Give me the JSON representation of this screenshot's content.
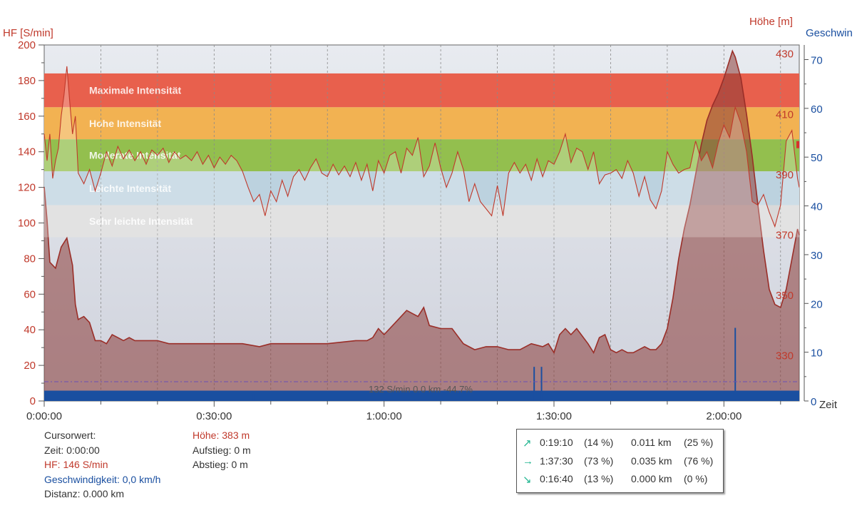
{
  "header": {
    "hf_axis_label": "HF [S/min]",
    "hoehe_axis_label": "Höhe [m]",
    "speed_axis_label": "Geschwin",
    "time_axis_label": "Zeit"
  },
  "zones": [
    {
      "label": "Maximale Intensität",
      "from": 165,
      "to": 184,
      "color": "#e8604d"
    },
    {
      "label": "Hohe Intensität",
      "from": 147,
      "to": 165,
      "color": "#f2b252"
    },
    {
      "label": "Moderate Intensität",
      "from": 129,
      "to": 147,
      "color": "#93bf4e"
    },
    {
      "label": "Leichte Intensität",
      "from": 110,
      "to": 129,
      "color": "#bcd2df"
    },
    {
      "label": "Sehr leichte Intensität",
      "from": 92,
      "to": 110,
      "color": "#d9d9d9"
    }
  ],
  "reference_line": {
    "value": 12,
    "text": "132 S/min 0.0 km -44.7%"
  },
  "chart_data": {
    "type": "area",
    "title": "",
    "xlabel": "Zeit",
    "ylabel": "HF [S/min]",
    "x_range_minutes": [
      0,
      133.3
    ],
    "x_ticks": [
      "0:00:00",
      "0:30:00",
      "1:00:00",
      "1:30:00",
      "2:00:00"
    ],
    "x_tick_minutes": [
      0,
      30,
      60,
      90,
      120
    ],
    "y_left": {
      "label": "HF [S/min]",
      "range": [
        0,
        200
      ],
      "ticks": [
        0,
        20,
        40,
        60,
        80,
        100,
        120,
        140,
        160,
        180,
        200
      ]
    },
    "y_right_hoehe": {
      "label": "Höhe [m]",
      "range": [
        315,
        433
      ],
      "ticks": [
        330,
        350,
        370,
        390,
        410,
        430
      ]
    },
    "y_right_speed": {
      "label": "Geschwin",
      "range": [
        0,
        73
      ],
      "ticks": [
        0,
        10,
        20,
        30,
        40,
        50,
        60,
        70
      ]
    },
    "grid": true,
    "series": [
      {
        "name": "HF",
        "unit": "S/min",
        "color": "#c0392b",
        "points": [
          [
            0,
            150
          ],
          [
            0.5,
            135
          ],
          [
            1,
            150
          ],
          [
            1.5,
            125
          ],
          [
            2,
            135
          ],
          [
            2.5,
            142
          ],
          [
            3,
            160
          ],
          [
            3.5,
            172
          ],
          [
            4,
            188
          ],
          [
            4.5,
            168
          ],
          [
            5,
            150
          ],
          [
            5.5,
            160
          ],
          [
            6,
            128
          ],
          [
            7,
            122
          ],
          [
            8,
            130
          ],
          [
            9,
            118
          ],
          [
            10,
            128
          ],
          [
            11,
            140
          ],
          [
            12,
            132
          ],
          [
            13,
            143
          ],
          [
            14,
            136
          ],
          [
            15,
            141
          ],
          [
            16,
            135
          ],
          [
            17,
            140
          ],
          [
            18,
            133
          ],
          [
            19,
            141
          ],
          [
            20,
            138
          ],
          [
            21,
            142
          ],
          [
            22,
            134
          ],
          [
            23,
            140
          ],
          [
            24,
            136
          ],
          [
            25,
            138
          ],
          [
            26,
            135
          ],
          [
            27,
            140
          ],
          [
            28,
            133
          ],
          [
            29,
            138
          ],
          [
            30,
            131
          ],
          [
            31,
            137
          ],
          [
            32,
            133
          ],
          [
            33,
            138
          ],
          [
            34,
            135
          ],
          [
            35,
            129
          ],
          [
            36,
            120
          ],
          [
            37,
            112
          ],
          [
            38,
            116
          ],
          [
            39,
            104
          ],
          [
            40,
            118
          ],
          [
            41,
            112
          ],
          [
            42,
            124
          ],
          [
            43,
            115
          ],
          [
            44,
            126
          ],
          [
            45,
            130
          ],
          [
            46,
            124
          ],
          [
            47,
            131
          ],
          [
            48,
            136
          ],
          [
            49,
            128
          ],
          [
            50,
            126
          ],
          [
            51,
            133
          ],
          [
            52,
            127
          ],
          [
            53,
            132
          ],
          [
            54,
            126
          ],
          [
            55,
            134
          ],
          [
            56,
            124
          ],
          [
            57,
            133
          ],
          [
            58,
            118
          ],
          [
            59,
            135
          ],
          [
            60,
            128
          ],
          [
            61,
            138
          ],
          [
            62,
            140
          ],
          [
            63,
            128
          ],
          [
            64,
            142
          ],
          [
            65,
            138
          ],
          [
            66,
            148
          ],
          [
            67,
            126
          ],
          [
            68,
            132
          ],
          [
            69,
            145
          ],
          [
            70,
            131
          ],
          [
            71,
            120
          ],
          [
            72,
            128
          ],
          [
            73,
            140
          ],
          [
            74,
            130
          ],
          [
            75,
            112
          ],
          [
            76,
            122
          ],
          [
            77,
            112
          ],
          [
            78,
            108
          ],
          [
            79,
            104
          ],
          [
            80,
            121
          ],
          [
            81,
            104
          ],
          [
            82,
            128
          ],
          [
            83,
            134
          ],
          [
            84,
            128
          ],
          [
            85,
            133
          ],
          [
            86,
            124
          ],
          [
            87,
            136
          ],
          [
            88,
            126
          ],
          [
            89,
            135
          ],
          [
            90,
            133
          ],
          [
            91,
            140
          ],
          [
            92,
            150
          ],
          [
            93,
            134
          ],
          [
            94,
            142
          ],
          [
            95,
            140
          ],
          [
            96,
            130
          ],
          [
            97,
            140
          ],
          [
            98,
            122
          ],
          [
            99,
            127
          ],
          [
            100,
            128
          ],
          [
            101,
            130
          ],
          [
            102,
            125
          ],
          [
            103,
            135
          ],
          [
            104,
            128
          ],
          [
            105,
            115
          ],
          [
            106,
            126
          ],
          [
            107,
            113
          ],
          [
            108,
            108
          ],
          [
            109,
            118
          ],
          [
            110,
            140
          ],
          [
            111,
            133
          ],
          [
            112,
            128
          ],
          [
            113,
            130
          ],
          [
            114,
            131
          ],
          [
            115,
            146
          ],
          [
            116,
            135
          ],
          [
            117,
            140
          ],
          [
            118,
            131
          ],
          [
            119,
            145
          ],
          [
            120,
            155
          ],
          [
            121,
            148
          ],
          [
            122,
            165
          ],
          [
            123,
            156
          ],
          [
            124,
            140
          ],
          [
            125,
            112
          ],
          [
            126,
            110
          ],
          [
            127,
            116
          ],
          [
            128,
            106
          ],
          [
            129,
            98
          ],
          [
            130,
            110
          ],
          [
            131,
            146
          ],
          [
            132,
            152
          ],
          [
            133,
            125
          ],
          [
            133.3,
            120
          ]
        ]
      },
      {
        "name": "Höhe",
        "unit": "m",
        "color": "#9a5a55",
        "points": [
          [
            0,
            386
          ],
          [
            0.5,
            375
          ],
          [
            1,
            361
          ],
          [
            2,
            359
          ],
          [
            3,
            366
          ],
          [
            4,
            369
          ],
          [
            5,
            360
          ],
          [
            5.5,
            347
          ],
          [
            6,
            342
          ],
          [
            7,
            343
          ],
          [
            8,
            341
          ],
          [
            9,
            335
          ],
          [
            10,
            335
          ],
          [
            11,
            334
          ],
          [
            12,
            337
          ],
          [
            13,
            336
          ],
          [
            14,
            335
          ],
          [
            15,
            336
          ],
          [
            16,
            335
          ],
          [
            18,
            335
          ],
          [
            20,
            335
          ],
          [
            22,
            334
          ],
          [
            25,
            334
          ],
          [
            27,
            334
          ],
          [
            30,
            334
          ],
          [
            35,
            334
          ],
          [
            38,
            333
          ],
          [
            40,
            334
          ],
          [
            45,
            334
          ],
          [
            50,
            334
          ],
          [
            55,
            335
          ],
          [
            57,
            335
          ],
          [
            58,
            336
          ],
          [
            59,
            339
          ],
          [
            60,
            337
          ],
          [
            62,
            341
          ],
          [
            64,
            345
          ],
          [
            65,
            344
          ],
          [
            66,
            343
          ],
          [
            67,
            346
          ],
          [
            68,
            340
          ],
          [
            70,
            339
          ],
          [
            72,
            339
          ],
          [
            74,
            334
          ],
          [
            76,
            332
          ],
          [
            78,
            333
          ],
          [
            80,
            333
          ],
          [
            82,
            332
          ],
          [
            84,
            332
          ],
          [
            86,
            334
          ],
          [
            88,
            333
          ],
          [
            89,
            334
          ],
          [
            90,
            331
          ],
          [
            91,
            337
          ],
          [
            92,
            339
          ],
          [
            93,
            337
          ],
          [
            94,
            339
          ],
          [
            96,
            334
          ],
          [
            97,
            331
          ],
          [
            98,
            336
          ],
          [
            99,
            337
          ],
          [
            100,
            332
          ],
          [
            101,
            331
          ],
          [
            102,
            332
          ],
          [
            103,
            331
          ],
          [
            104,
            331
          ],
          [
            105,
            332
          ],
          [
            106,
            333
          ],
          [
            107,
            332
          ],
          [
            108,
            332
          ],
          [
            109,
            334
          ],
          [
            110,
            339
          ],
          [
            111,
            349
          ],
          [
            112,
            362
          ],
          [
            113,
            372
          ],
          [
            114,
            380
          ],
          [
            115,
            390
          ],
          [
            116,
            400
          ],
          [
            117,
            408
          ],
          [
            118,
            413
          ],
          [
            119,
            417
          ],
          [
            120,
            422
          ],
          [
            121,
            428
          ],
          [
            121.5,
            431
          ],
          [
            122,
            429
          ],
          [
            123,
            422
          ],
          [
            124,
            410
          ],
          [
            125,
            396
          ],
          [
            126,
            380
          ],
          [
            127,
            365
          ],
          [
            128,
            352
          ],
          [
            129,
            347
          ],
          [
            130,
            346
          ],
          [
            131,
            352
          ],
          [
            132,
            362
          ],
          [
            133,
            372
          ],
          [
            133.3,
            370
          ]
        ]
      },
      {
        "name": "Geschwindigkeit",
        "unit": "km/h",
        "color": "#1a4fa0",
        "baseline_kmh": 0.8,
        "spikes": [
          [
            37,
            1.5
          ],
          [
            86.5,
            7
          ],
          [
            87.8,
            7
          ],
          [
            122,
            15
          ]
        ]
      }
    ]
  },
  "info": {
    "cursor_title": "Cursorwert:",
    "zeit": "Zeit: 0:00:00",
    "hf": "HF: 146 S/min",
    "geschwindigkeit": "Geschwindigkeit: 0,0 km/h",
    "distanz": "Distanz: 0.000 km",
    "hoehe_label": "Höhe:",
    "hoehe_value": "383 m",
    "aufstieg": "Aufstieg: 0 m",
    "abstieg": "Abstieg: 0 m"
  },
  "stats": [
    {
      "arrow": "↗",
      "time": "0:19:10",
      "time_pct": "(14 %)",
      "dist": "0.011 km",
      "dist_pct": "(25 %)"
    },
    {
      "arrow": "→",
      "time": "1:37:30",
      "time_pct": "(73 %)",
      "dist": "0.035 km",
      "dist_pct": "(76 %)"
    },
    {
      "arrow": "↘",
      "time": "0:16:40",
      "time_pct": "(13 %)",
      "dist": "0.000 km",
      "dist_pct": "(0 %)"
    }
  ]
}
